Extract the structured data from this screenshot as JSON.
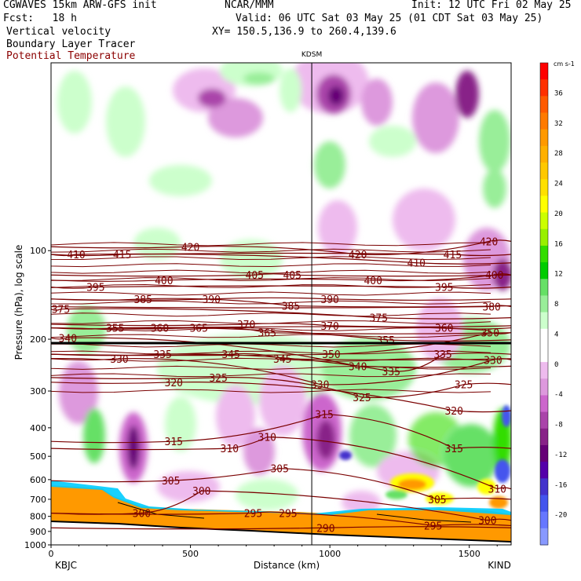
{
  "header": {
    "model": "CGWAVES 15km ARW-GFS init",
    "org": "NCAR/MMM",
    "init": "Init: 12 UTC Fri 02 May 25",
    "fcst": "Fcst:   18 h",
    "valid": "Valid: 06 UTC Sat 03 May 25 (01 CDT Sat 03 May 25)",
    "xy": "XY= 150.5,136.9 to 260.4,139.6",
    "fields": [
      "Vertical velocity",
      "Boundary Layer Tracer",
      "Potential Temperature"
    ],
    "field_colors": [
      "#000000",
      "#000000",
      "#8b0000"
    ]
  },
  "chart_data": {
    "type": "heatmap",
    "title": "",
    "xlabel": "Distance (km)",
    "ylabel": "Pressure (hPa), log scale",
    "xlim": [
      0,
      1650
    ],
    "xticks": [
      0,
      500,
      1000,
      1500
    ],
    "ylim": [
      1000,
      23
    ],
    "yscale": "log",
    "yticks": [
      100,
      200,
      300,
      400,
      500,
      600,
      700,
      800,
      900,
      1000
    ],
    "x_endpoints": {
      "left": "KBJC",
      "right": "KIND"
    },
    "marker": {
      "label": "KDSM",
      "x": 935
    },
    "colorbar": {
      "unit": "cm s-1",
      "ticks": [
        36,
        32,
        28,
        24,
        20,
        16,
        12,
        8,
        4,
        0,
        -4,
        -8,
        -12,
        -16,
        -20
      ],
      "colors": [
        "#ff0000",
        "#ff3000",
        "#ff5a00",
        "#ff7a00",
        "#ff9900",
        "#ffb000",
        "#ffc800",
        "#ffe000",
        "#ffff00",
        "#ccff00",
        "#99f000",
        "#33dd00",
        "#00cc00",
        "#66e066",
        "#99ee99",
        "#ccffcc",
        "#ffffff",
        "#ffffff",
        "#eebbee",
        "#dd99dd",
        "#cc66cc",
        "#aa44aa",
        "#882288",
        "#660077",
        "#5500aa",
        "#4433cc",
        "#4455ee",
        "#6677ff",
        "#8899ff"
      ]
    },
    "theta_labels": [
      {
        "v": "420",
        "x": 500,
        "p": 97
      },
      {
        "v": "410",
        "x": 90,
        "p": 103
      },
      {
        "v": "415",
        "x": 255,
        "p": 103
      },
      {
        "v": "405",
        "x": 730,
        "p": 121
      },
      {
        "v": "405",
        "x": 865,
        "p": 121
      },
      {
        "v": "400",
        "x": 405,
        "p": 126
      },
      {
        "v": "395",
        "x": 160,
        "p": 133
      },
      {
        "v": "390",
        "x": 575,
        "p": 146
      },
      {
        "v": "385",
        "x": 330,
        "p": 146
      },
      {
        "v": "385",
        "x": 860,
        "p": 154
      },
      {
        "v": "375",
        "x": 35,
        "p": 158
      },
      {
        "v": "420",
        "x": 1100,
        "p": 103
      },
      {
        "v": "410",
        "x": 1310,
        "p": 110
      },
      {
        "v": "415",
        "x": 1440,
        "p": 103
      },
      {
        "v": "420",
        "x": 1570,
        "p": 93
      },
      {
        "v": "400",
        "x": 1590,
        "p": 121
      },
      {
        "v": "400",
        "x": 1155,
        "p": 126
      },
      {
        "v": "395",
        "x": 1410,
        "p": 133
      },
      {
        "v": "390",
        "x": 1000,
        "p": 146
      },
      {
        "v": "380",
        "x": 1580,
        "p": 155
      },
      {
        "v": "375",
        "x": 1175,
        "p": 169
      },
      {
        "v": "370",
        "x": 700,
        "p": 178
      },
      {
        "v": "370",
        "x": 1000,
        "p": 180
      },
      {
        "v": "365",
        "x": 530,
        "p": 183
      },
      {
        "v": "365",
        "x": 775,
        "p": 190
      },
      {
        "v": "360",
        "x": 390,
        "p": 183
      },
      {
        "v": "360",
        "x": 1410,
        "p": 183
      },
      {
        "v": "355",
        "x": 230,
        "p": 183
      },
      {
        "v": "355",
        "x": 1200,
        "p": 201
      },
      {
        "v": "350",
        "x": 1575,
        "p": 190
      },
      {
        "v": "350",
        "x": 1005,
        "p": 225
      },
      {
        "v": "345",
        "x": 645,
        "p": 225
      },
      {
        "v": "345",
        "x": 830,
        "p": 233
      },
      {
        "v": "340",
        "x": 60,
        "p": 198
      },
      {
        "v": "340",
        "x": 1100,
        "p": 247
      },
      {
        "v": "335",
        "x": 400,
        "p": 225
      },
      {
        "v": "335",
        "x": 1220,
        "p": 257
      },
      {
        "v": "335",
        "x": 1405,
        "p": 225
      },
      {
        "v": "330",
        "x": 245,
        "p": 233
      },
      {
        "v": "330",
        "x": 965,
        "p": 285
      },
      {
        "v": "330",
        "x": 1585,
        "p": 235
      },
      {
        "v": "325",
        "x": 600,
        "p": 270
      },
      {
        "v": "325",
        "x": 1115,
        "p": 315
      },
      {
        "v": "325",
        "x": 1480,
        "p": 285
      },
      {
        "v": "320",
        "x": 440,
        "p": 280
      },
      {
        "v": "320",
        "x": 1445,
        "p": 350
      },
      {
        "v": "315",
        "x": 440,
        "p": 445
      },
      {
        "v": "315",
        "x": 980,
        "p": 360
      },
      {
        "v": "315",
        "x": 1445,
        "p": 470
      },
      {
        "v": "310",
        "x": 640,
        "p": 470
      },
      {
        "v": "310",
        "x": 775,
        "p": 430
      },
      {
        "v": "310",
        "x": 1600,
        "p": 645
      },
      {
        "v": "305",
        "x": 430,
        "p": 605
      },
      {
        "v": "305",
        "x": 820,
        "p": 550
      },
      {
        "v": "305",
        "x": 1385,
        "p": 700
      },
      {
        "v": "300",
        "x": 540,
        "p": 655
      },
      {
        "v": "300",
        "x": 325,
        "p": 780
      },
      {
        "v": "300",
        "x": 1565,
        "p": 825
      },
      {
        "v": "295",
        "x": 725,
        "p": 780
      },
      {
        "v": "295",
        "x": 850,
        "p": 780
      },
      {
        "v": "295",
        "x": 1370,
        "p": 860
      },
      {
        "v": "290",
        "x": 985,
        "p": 875
      }
    ]
  }
}
